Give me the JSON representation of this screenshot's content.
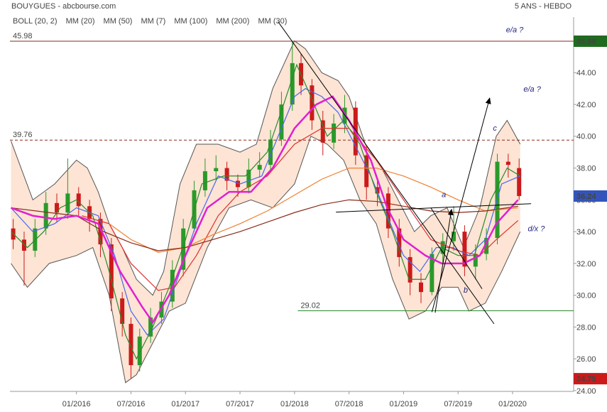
{
  "chart_data": {
    "type": "candlestick",
    "title": "BOUYGUES - abcbourse.com",
    "subtitle": "5 ANS - HEBDO",
    "xlim": [
      2015.39,
      2020.56
    ],
    "xticks": [
      {
        "value": 2016,
        "label": "01/2016"
      },
      {
        "value": 2016.5,
        "label": "07/2016"
      },
      {
        "value": 2017,
        "label": "01/2017"
      },
      {
        "value": 2017.5,
        "label": "07/2017"
      },
      {
        "value": 2018,
        "label": "01/2018"
      },
      {
        "value": 2018.5,
        "label": "07/2018"
      },
      {
        "value": 2019,
        "label": "01/2019"
      },
      {
        "value": 2019.5,
        "label": "07/2019"
      },
      {
        "value": 2020,
        "label": "01/2020"
      }
    ],
    "ylim": [
      23.95,
      47.5
    ],
    "yticks": [
      {
        "value": 24,
        "label": "24.00"
      },
      {
        "value": 26,
        "label": "26.00"
      },
      {
        "value": 28,
        "label": "28.00"
      },
      {
        "value": 30,
        "label": "30.00"
      },
      {
        "value": 32,
        "label": "32.00"
      },
      {
        "value": 34,
        "label": "34.00"
      },
      {
        "value": 36,
        "label": "36.00"
      },
      {
        "value": 38,
        "label": "38.00"
      },
      {
        "value": 40,
        "label": "40.00"
      },
      {
        "value": 42,
        "label": "42.00"
      },
      {
        "value": 44,
        "label": "44.00"
      }
    ],
    "up_color": "#2a9a2a",
    "down_color": "#cc1a1a",
    "candles": {
      "x": [
        2015.42,
        2015.52,
        2015.62,
        2015.72,
        2015.82,
        2015.92,
        2016.02,
        2016.12,
        2016.22,
        2016.32,
        2016.42,
        2016.5,
        2016.58,
        2016.68,
        2016.78,
        2016.88,
        2016.98,
        2017.08,
        2017.18,
        2017.28,
        2017.38,
        2017.48,
        2017.58,
        2017.68,
        2017.78,
        2017.88,
        2017.98,
        2018.06,
        2018.16,
        2018.26,
        2018.36,
        2018.46,
        2018.56,
        2018.66,
        2018.76,
        2018.86,
        2018.96,
        2019.06,
        2019.16,
        2019.26,
        2019.36,
        2019.46,
        2019.56,
        2019.66,
        2019.76,
        2019.86,
        2019.96,
        2020.06
      ],
      "open": [
        34.2,
        33.5,
        32.8,
        34.2,
        35.8,
        35.2,
        36.4,
        35.6,
        34.8,
        33.2,
        29.8,
        28.2,
        25.6,
        27.4,
        28.6,
        29.6,
        31.6,
        34.2,
        36.6,
        37.8,
        38.0,
        37.2,
        36.8,
        37.9,
        38.2,
        39.8,
        42.0,
        44.6,
        43.2,
        41.0,
        39.6,
        40.8,
        41.8,
        38.8,
        36.8,
        36.4,
        34.2,
        32.4,
        30.8,
        30.2,
        32.6,
        33.4,
        34.0,
        31.8,
        32.6,
        33.6,
        38.4,
        38.0
      ],
      "high": [
        34.8,
        34.0,
        34.8,
        36.5,
        36.4,
        38.6,
        36.8,
        36.0,
        35.2,
        33.6,
        30.2,
        28.6,
        27.9,
        29.2,
        30.2,
        32.2,
        34.8,
        37.2,
        38.6,
        38.8,
        38.4,
        37.6,
        38.6,
        39.0,
        40.4,
        42.8,
        45.98,
        45.2,
        43.6,
        41.6,
        41.4,
        42.6,
        42.2,
        39.4,
        37.4,
        36.8,
        34.8,
        32.9,
        31.4,
        33.0,
        33.9,
        35.6,
        34.4,
        33.2,
        34.2,
        38.9,
        38.9,
        38.6
      ],
      "low": [
        32.9,
        30.6,
        32.4,
        33.8,
        34.6,
        34.8,
        35.0,
        34.0,
        32.4,
        29.0,
        27.4,
        24.75,
        25.2,
        27.0,
        28.2,
        29.2,
        31.2,
        34.0,
        36.2,
        37.2,
        36.6,
        36.2,
        36.4,
        37.4,
        37.8,
        39.4,
        41.6,
        42.6,
        40.4,
        38.8,
        39.2,
        40.2,
        38.2,
        36.0,
        35.6,
        33.6,
        31.8,
        30.0,
        29.5,
        30.0,
        32.0,
        32.8,
        31.2,
        31.0,
        32.2,
        33.2,
        37.4,
        36.0
      ],
      "close": [
        33.5,
        32.8,
        34.2,
        35.8,
        35.2,
        36.4,
        35.6,
        34.8,
        33.2,
        29.8,
        28.2,
        25.6,
        27.4,
        28.6,
        29.6,
        31.6,
        34.2,
        36.6,
        37.8,
        38.0,
        37.2,
        36.8,
        37.9,
        38.2,
        39.8,
        42.0,
        44.6,
        43.2,
        41.0,
        39.6,
        40.8,
        41.8,
        38.8,
        36.8,
        36.4,
        34.2,
        32.4,
        30.8,
        30.2,
        32.6,
        33.4,
        34.0,
        31.8,
        32.6,
        33.6,
        38.4,
        38.2,
        36.24
      ]
    },
    "bollinger": {
      "name": "BOLL (20, 2)",
      "color": "#555555",
      "fill": "#fde4d4",
      "upper": {
        "x": [
          2015.4,
          2015.6,
          2015.8,
          2016.0,
          2016.1,
          2016.2,
          2016.3,
          2016.42,
          2016.55,
          2016.7,
          2016.8,
          2016.95,
          2017.1,
          2017.3,
          2017.5,
          2017.65,
          2017.8,
          2018.0,
          2018.1,
          2018.25,
          2018.4,
          2018.5,
          2018.65,
          2018.8,
          2018.95,
          2019.1,
          2019.25,
          2019.4,
          2019.55,
          2019.7,
          2019.85,
          2019.95,
          2020.07
        ],
        "values": [
          39.7,
          36,
          37,
          38.5,
          38,
          36.5,
          34.5,
          33,
          31,
          30,
          31.5,
          37,
          39.5,
          39.5,
          39,
          39.5,
          43,
          46,
          45.5,
          44,
          43.5,
          42.5,
          39.5,
          38,
          36,
          34,
          35,
          35.5,
          33,
          35.5,
          40,
          41,
          39.5
        ]
      },
      "lower": {
        "x": [
          2015.4,
          2015.55,
          2015.75,
          2016.0,
          2016.15,
          2016.3,
          2016.45,
          2016.55,
          2016.7,
          2016.85,
          2017.0,
          2017.2,
          2017.4,
          2017.6,
          2017.8,
          2018.0,
          2018.15,
          2018.3,
          2018.45,
          2018.6,
          2018.75,
          2018.9,
          2019.05,
          2019.2,
          2019.35,
          2019.5,
          2019.6,
          2019.75,
          2019.9,
          2020.07
        ],
        "values": [
          32,
          30.5,
          32,
          32.5,
          33,
          30,
          24.5,
          25,
          27,
          29,
          29.5,
          33,
          35.5,
          36,
          35.5,
          37,
          40,
          39.5,
          38.5,
          36,
          34.5,
          31,
          28.5,
          29,
          30.5,
          30.5,
          29,
          29.5,
          31.5,
          34
        ]
      }
    },
    "series": [
      {
        "name": "MM (20)",
        "color": "#4a66ee",
        "x": [
          2015.4,
          2015.6,
          2015.8,
          2016.0,
          2016.2,
          2016.35,
          2016.5,
          2016.65,
          2016.8,
          2016.95,
          2017.1,
          2017.3,
          2017.5,
          2017.7,
          2017.85,
          2018.0,
          2018.1,
          2018.25,
          2018.4,
          2018.55,
          2018.7,
          2018.85,
          2019.0,
          2019.15,
          2019.3,
          2019.45,
          2019.6,
          2019.75,
          2019.9,
          2020.07
        ],
        "values": [
          35.5,
          34,
          34.5,
          35.5,
          35,
          32.5,
          29,
          27.5,
          28.5,
          31.5,
          34.5,
          37.5,
          37,
          37.5,
          40,
          42.5,
          43,
          42.5,
          41.5,
          39.5,
          37.5,
          35,
          32.5,
          31.5,
          33,
          33,
          32.5,
          33.5,
          37,
          37.5
        ]
      },
      {
        "name": "MM (50)",
        "color": "#e03030",
        "x": [
          2016.05,
          2016.3,
          2016.5,
          2016.75,
          2016.9,
          2017.1,
          2017.3,
          2017.5,
          2017.75,
          2018.0,
          2018.25,
          2018.5,
          2018.75,
          2019.0,
          2019.25,
          2019.5,
          2019.7,
          2019.85,
          2020.05
        ],
        "values": [
          35,
          34.5,
          32,
          30.3,
          30.5,
          32.5,
          35,
          36.5,
          37.5,
          39.5,
          40.5,
          40.5,
          38.5,
          36,
          33.5,
          32.8,
          32.5,
          33.5,
          34.7
        ]
      },
      {
        "name": "MM (7)",
        "color": "#2a8a2a",
        "x": [
          2015.4,
          2015.55,
          2015.7,
          2015.85,
          2016.0,
          2016.15,
          2016.3,
          2016.45,
          2016.55,
          2016.7,
          2016.85,
          2017.0,
          2017.15,
          2017.35,
          2017.55,
          2017.75,
          2017.9,
          2018.02,
          2018.15,
          2018.3,
          2018.45,
          2018.6,
          2018.75,
          2018.9,
          2019.05,
          2019.2,
          2019.35,
          2019.5,
          2019.65,
          2019.8,
          2019.95,
          2020.07
        ],
        "values": [
          34,
          33,
          34,
          35.5,
          36,
          35,
          31.5,
          27.5,
          26,
          28,
          30.5,
          33.5,
          37,
          37.5,
          37.5,
          39,
          42,
          44.5,
          42.5,
          40,
          41,
          39.5,
          36.5,
          34,
          31,
          31,
          33,
          32.5,
          32.5,
          36,
          38,
          37.5
        ]
      },
      {
        "name": "MM (100)",
        "color": "#f08030",
        "x": [
          2016.3,
          2016.5,
          2016.75,
          2017.0,
          2017.25,
          2017.5,
          2017.75,
          2018.0,
          2018.25,
          2018.5,
          2018.75,
          2019.0,
          2019.25,
          2019.5,
          2019.75,
          2020.05
        ],
        "values": [
          34.5,
          33.5,
          32.7,
          33,
          33.8,
          34.5,
          35.3,
          36.3,
          37.3,
          38,
          38,
          37.5,
          36.8,
          36,
          35.3,
          35.5
        ]
      },
      {
        "name": "MM (200)",
        "color": "#8b2a1a",
        "x": [
          2015.4,
          2015.75,
          2016.0,
          2016.25,
          2016.5,
          2016.75,
          2017.0,
          2017.25,
          2017.5,
          2017.75,
          2018.0,
          2018.25,
          2018.5,
          2018.75,
          2019.0,
          2019.25,
          2019.5,
          2019.75,
          2020.05
        ],
        "values": [
          35.5,
          35.2,
          35,
          34,
          33.3,
          32.8,
          33,
          33.5,
          34,
          34.6,
          35.2,
          35.7,
          36,
          35.9,
          35.6,
          35.3,
          35.2,
          35.3,
          35.6
        ]
      },
      {
        "name": "MM (30)",
        "color": "#e020d0",
        "x": [
          2015.4,
          2015.6,
          2015.8,
          2016.0,
          2016.2,
          2016.4,
          2016.6,
          2016.7,
          2016.85,
          2017.0,
          2017.2,
          2017.4,
          2017.6,
          2017.8,
          2018.0,
          2018.2,
          2018.35,
          2018.5,
          2018.7,
          2018.85,
          2019.0,
          2019.2,
          2019.35,
          2019.55,
          2019.7,
          2019.85,
          2020.05
        ],
        "values": [
          35.5,
          35,
          34.8,
          35,
          34.5,
          31.5,
          29.3,
          28.3,
          30,
          32.5,
          35.5,
          36.5,
          36.5,
          38,
          40.5,
          42,
          42.5,
          41,
          38.5,
          35.5,
          33.5,
          32.5,
          32,
          32,
          32.5,
          34.5,
          36
        ]
      }
    ],
    "levels": [
      {
        "value": 45.98,
        "label": "45.98",
        "color": "#8b2a1a",
        "dashed": false,
        "from": 2015.39
      },
      {
        "value": 39.76,
        "label": "39.76",
        "color": "#8b2a1a",
        "dashed": true,
        "from": 2015.39
      },
      {
        "value": 29.02,
        "label": "29.02",
        "color": "#2a8a2a",
        "dashed": false,
        "from": 2018.03
      }
    ],
    "price_tags": [
      {
        "value": 45.98,
        "label": "45.98",
        "color": "#1f6b1f"
      },
      {
        "value": 36.24,
        "label": "36.24",
        "color": "#3355bb"
      },
      {
        "value": 24.75,
        "label": "24.75",
        "color": "#cc1a1a"
      }
    ],
    "trendlines": [
      {
        "x": [
          2017.85,
          2019.83
        ],
        "y": [
          47.2,
          28.2
        ],
        "arrow": false
      },
      {
        "x": [
          2019.26,
          2019.79
        ],
        "y": [
          28.94,
          42.4
        ],
        "arrow": true
      },
      {
        "x": [
          2018.38,
          2020.17
        ],
        "y": [
          35.23,
          35.76
        ],
        "arrow": false
      },
      {
        "x": [
          2019.29,
          2019.44
        ],
        "y": [
          28.9,
          35.4
        ],
        "arrow": true
      },
      {
        "x": [
          2019.25,
          2019.72
        ],
        "y": [
          35.5,
          30.4
        ],
        "arrow": false
      }
    ],
    "annotations": [
      {
        "text": "e/a ?",
        "x": 2019.94,
        "y": 46.67
      },
      {
        "text": "e/a ?",
        "x": 2020.1,
        "y": 42.93
      },
      {
        "text": "c",
        "x": 2019.82,
        "y": 40.48
      },
      {
        "text": "a",
        "x": 2019.35,
        "y": 36.3
      },
      {
        "text": "b",
        "x": 2019.55,
        "y": 30.3
      },
      {
        "text": "d/x ?",
        "x": 2020.14,
        "y": 34.16
      }
    ]
  }
}
